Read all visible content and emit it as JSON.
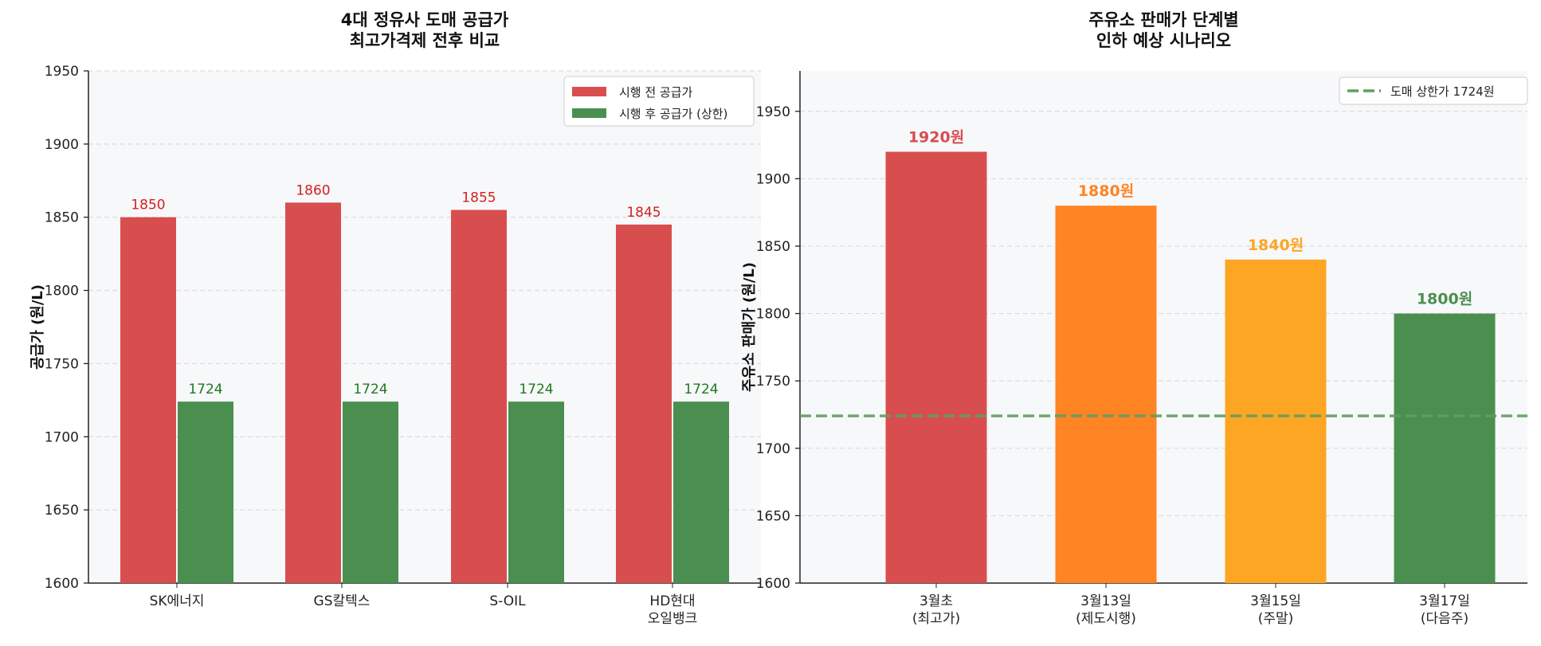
{
  "chart_data": [
    {
      "type": "bar",
      "title": "4대 정유사 도매 공급가\n최고가격제 전후 비교",
      "xlabel": "",
      "ylabel": "공급가 (원/L)",
      "ylim": [
        1600,
        1950
      ],
      "yticks": [
        1600,
        1650,
        1700,
        1750,
        1800,
        1850,
        1900,
        1950
      ],
      "grid": true,
      "legend_position": "top-right",
      "categories": [
        "SK에너지",
        "GS칼텍스",
        "S-OIL",
        "HD현대\n오일뱅크"
      ],
      "series": [
        {
          "name": "시행 전 공급가",
          "values": [
            1850,
            1860,
            1855,
            1845
          ],
          "color": "#d84e4f",
          "label_color": "#d42020",
          "labels": [
            "1850",
            "1860",
            "1855",
            "1845"
          ]
        },
        {
          "name": "시행 후 공급가 (상한)",
          "values": [
            1724,
            1724,
            1724,
            1724
          ],
          "color": "#4a8f50",
          "label_color": "#1e7a1e",
          "labels": [
            "1724",
            "1724",
            "1724",
            "1724"
          ]
        }
      ]
    },
    {
      "type": "bar",
      "title": "주유소 판매가 단계별\n인하 예상 시나리오",
      "xlabel": "",
      "ylabel": "주유소 판매가 (원/L)",
      "ylim": [
        1600,
        1980
      ],
      "yticks": [
        1600,
        1650,
        1700,
        1750,
        1800,
        1850,
        1900,
        1950
      ],
      "grid": true,
      "legend_position": "top-right",
      "categories": [
        "3월초\n(최고가)",
        "3월13일\n(제도시행)",
        "3월15일\n(주말)",
        "3월17일\n(다음주)"
      ],
      "values": [
        1920,
        1880,
        1840,
        1800
      ],
      "labels": [
        "1920원",
        "1880원",
        "1840원",
        "1800원"
      ],
      "colors": [
        "#d84e4f",
        "#fe8424",
        "#fca624",
        "#4a8f4f"
      ],
      "reference_line": {
        "name": "도매 상한가 1724원",
        "value": 1724,
        "color": "#5e9e5e"
      }
    }
  ]
}
